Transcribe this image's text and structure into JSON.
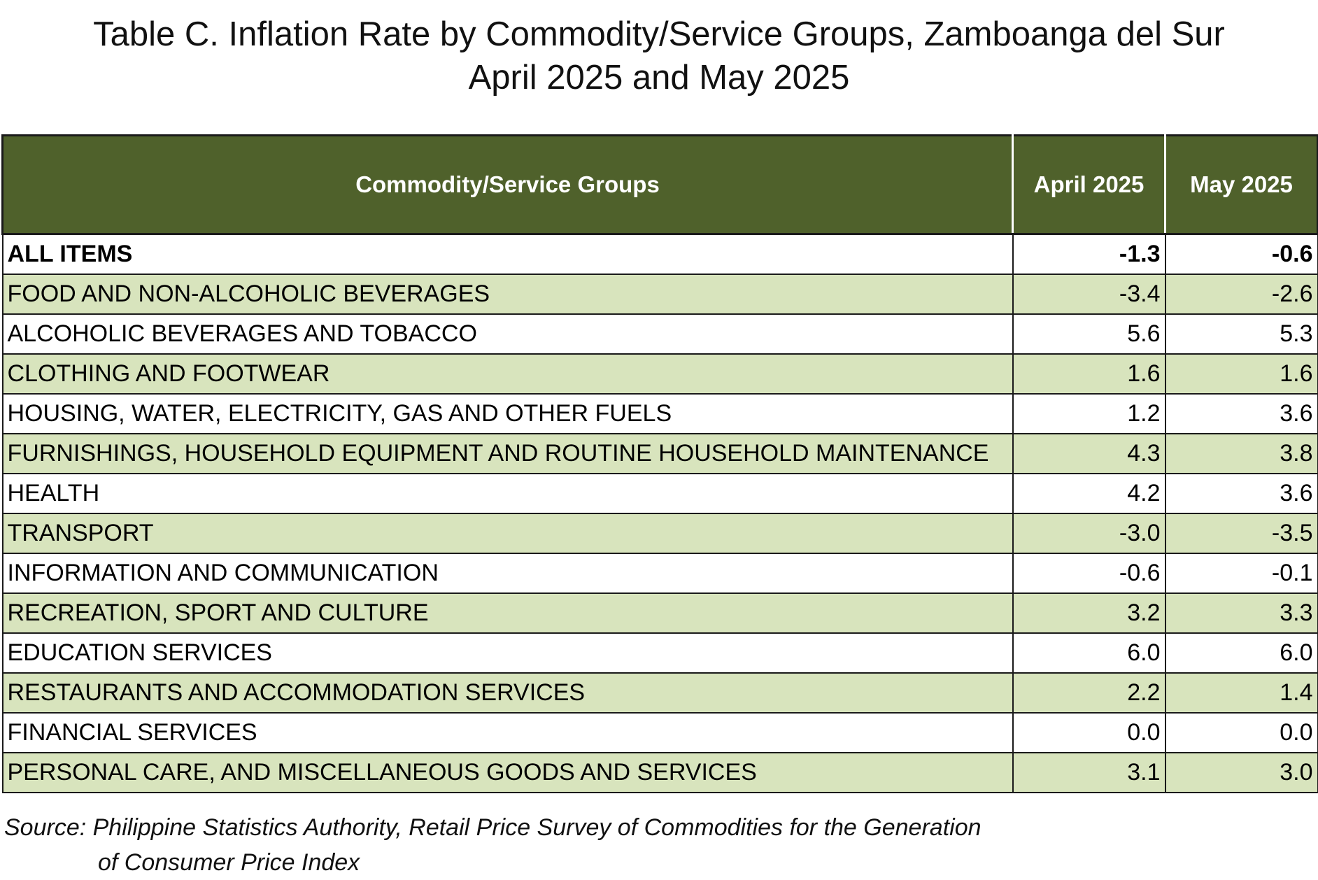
{
  "title": {
    "line1": "Table C. Inflation Rate by Commodity/Service Groups, Zamboanga del Sur",
    "line2": "April 2025 and May 2025"
  },
  "table": {
    "headers": [
      "Commodity/Service Groups",
      "April 2025",
      "May 2025"
    ],
    "rows": [
      {
        "group": "ALL ITEMS",
        "april": "-1.3",
        "may": "-0.6"
      },
      {
        "group": "FOOD AND NON-ALCOHOLIC BEVERAGES",
        "april": "-3.4",
        "may": "-2.6"
      },
      {
        "group": "ALCOHOLIC BEVERAGES AND TOBACCO",
        "april": "5.6",
        "may": "5.3"
      },
      {
        "group": "CLOTHING AND FOOTWEAR",
        "april": "1.6",
        "may": "1.6"
      },
      {
        "group": "HOUSING, WATER, ELECTRICITY, GAS AND OTHER FUELS",
        "april": "1.2",
        "may": "3.6"
      },
      {
        "group": "FURNISHINGS, HOUSEHOLD EQUIPMENT AND ROUTINE HOUSEHOLD MAINTENANCE",
        "april": "4.3",
        "may": "3.8"
      },
      {
        "group": "HEALTH",
        "april": "4.2",
        "may": "3.6"
      },
      {
        "group": "TRANSPORT",
        "april": "-3.0",
        "may": "-3.5"
      },
      {
        "group": "INFORMATION AND COMMUNICATION",
        "april": "-0.6",
        "may": "-0.1"
      },
      {
        "group": "RECREATION, SPORT AND CULTURE",
        "april": "3.2",
        "may": "3.3"
      },
      {
        "group": "EDUCATION SERVICES",
        "april": "6.0",
        "may": "6.0"
      },
      {
        "group": "RESTAURANTS AND ACCOMMODATION SERVICES",
        "april": "2.2",
        "may": "1.4"
      },
      {
        "group": "FINANCIAL SERVICES",
        "april": "0.0",
        "may": "0.0"
      },
      {
        "group": "PERSONAL CARE, AND MISCELLANEOUS GOODS AND SERVICES",
        "april": "3.1",
        "may": "3.0"
      }
    ]
  },
  "source": {
    "line1": "Source: Philippine Statistics Authority, Retail Price Survey of Commodities for the Generation",
    "line2": "of Consumer Price Index"
  },
  "colors": {
    "header_bg": "#4f612b",
    "alt_row_bg": "#d8e4bd",
    "header_text": "#ffffff"
  }
}
